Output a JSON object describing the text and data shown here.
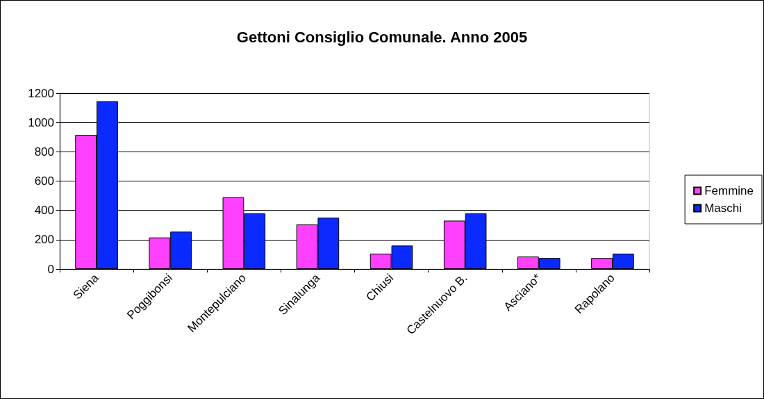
{
  "chart_data": {
    "type": "bar",
    "title": "Gettoni Consiglio Comunale. Anno 2005",
    "categories": [
      "Siena",
      "Poggibonsi",
      "Montepulciano",
      "Sinalunga",
      "Chiusi",
      "Castelnuovo B.",
      "Asciano*",
      "Rapolano"
    ],
    "series": [
      {
        "name": "Femmine",
        "color": "#ff40ff",
        "values": [
          915,
          215,
          490,
          305,
          105,
          330,
          85,
          75
        ]
      },
      {
        "name": "Maschi",
        "color": "#0a2aff",
        "values": [
          1145,
          255,
          380,
          350,
          160,
          380,
          75,
          105
        ]
      }
    ],
    "ylim": [
      0,
      1200
    ],
    "yticks": [
      0,
      200,
      400,
      600,
      800,
      1000,
      1200
    ],
    "grid": "y",
    "legend": "right"
  }
}
